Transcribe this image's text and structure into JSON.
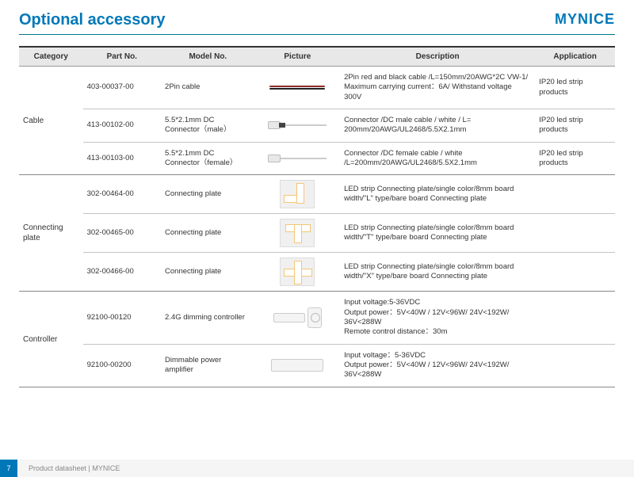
{
  "brand": "MYNICE",
  "title": "Optional accessory",
  "footer": {
    "page": "7",
    "text": "Product datasheet | MYNICE"
  },
  "colors": {
    "accent": "#0078b8",
    "header_bg": "#e8e8e8",
    "border_dark": "#333333",
    "border_mid": "#888888",
    "border_light": "#c4c4c4"
  },
  "table": {
    "columns": [
      "Category",
      "Part No.",
      "Model No.",
      "Picture",
      "Description",
      "Application"
    ],
    "groups": [
      {
        "category": "Cable",
        "rows": [
          {
            "part": "403-00037-00",
            "model": "2Pin cable",
            "picture": "cable-2pin",
            "desc": "2Pin red and black cable /L=150mm/20AWG*2C VW-1/ Maximum carrying current：6A/ Withstand voltage 300V",
            "app": "IP20 led strip products"
          },
          {
            "part": "413-00102-00",
            "model": "5.5*2.1mm DC Connector（male）",
            "picture": "dc-male",
            "desc": "Connector /DC male cable / white / L= 200mm/20AWG/UL2468/5.5X2.1mm",
            "app": "IP20 led strip products"
          },
          {
            "part": "413-00103-00",
            "model": "5.5*2.1mm DC Connector（female）",
            "picture": "dc-female",
            "desc": "Connector /DC female cable / white /L=200mm/20AWG/UL2468/5.5X2.1mm",
            "app": "IP20 led strip products"
          }
        ]
      },
      {
        "category": "Connecting plate",
        "rows": [
          {
            "part": "302-00464-00",
            "model": "Connecting plate",
            "picture": "plate-L",
            "desc": "LED strip Connecting plate/single color/8mm board width/\"L\" type/bare board Connecting plate",
            "app": ""
          },
          {
            "part": "302-00465-00",
            "model": "Connecting plate",
            "picture": "plate-T",
            "desc": "LED strip Connecting plate/single color/8mm board width/\"T\" type/bare board Connecting plate",
            "app": ""
          },
          {
            "part": "302-00466-00",
            "model": "Connecting plate",
            "picture": "plate-X",
            "desc": "LED strip Connecting plate/single color/8mm board width/\"X\" type/bare board Connecting plate",
            "app": ""
          }
        ]
      },
      {
        "category": "Controller",
        "rows": [
          {
            "part": "92100-00120",
            "model": "2.4G dimming controller",
            "picture": "dimmer-remote",
            "desc": "Input voltage:5-36VDC\nOutput power：5V<40W / 12V<96W/ 24V<192W/ 36V<288W\nRemote control distance：30m",
            "app": ""
          },
          {
            "part": "92100-00200",
            "model": "Dimmable power amplifier",
            "picture": "amplifier",
            "desc": "Input voltage：5-36VDC\nOutput power：5V<40W / 12V<96W/ 24V<192W/ 36V<288W",
            "app": ""
          }
        ]
      }
    ]
  }
}
